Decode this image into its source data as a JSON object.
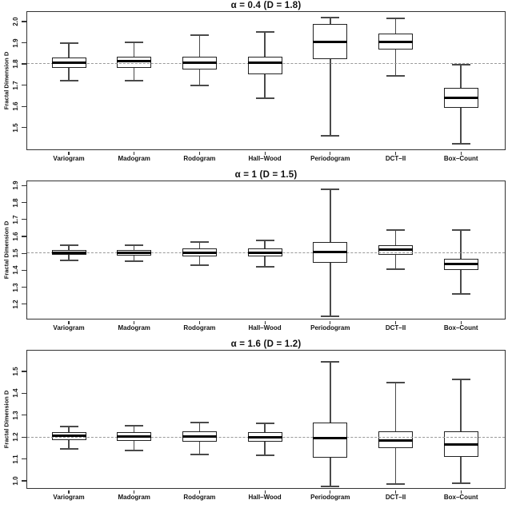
{
  "figure": {
    "ylabel": "Fractal Dimension D",
    "colors": {
      "foreground": "#111111",
      "frame": "#333333",
      "whisker": "#4a4a4a",
      "median": "#000000",
      "reference_dash": "#999999",
      "background": "#ffffff"
    }
  },
  "chart_data": [
    {
      "type": "boxplot",
      "title": "α = 0.4 (D = 1.8)",
      "ylabel": "Fractal Dimension D",
      "reference_line": 1.8,
      "ylim": [
        1.39,
        2.045
      ],
      "yticks": [
        1.5,
        1.6,
        1.7,
        1.8,
        1.9,
        2.0
      ],
      "grid": false,
      "categories": [
        "Variogram",
        "Madogram",
        "Rodogram",
        "Hall–Wood",
        "Periodogram",
        "DCT–II",
        "Box–Count"
      ],
      "boxes": [
        {
          "label": "Variogram",
          "whisker_low": 1.72,
          "q1": 1.78,
          "median": 1.807,
          "q3": 1.83,
          "whisker_high": 1.9
        },
        {
          "label": "Madogram",
          "whisker_low": 1.72,
          "q1": 1.783,
          "median": 1.812,
          "q3": 1.833,
          "whisker_high": 1.903
        },
        {
          "label": "Rodogram",
          "whisker_low": 1.7,
          "q1": 1.775,
          "median": 1.807,
          "q3": 1.835,
          "whisker_high": 1.937
        },
        {
          "label": "Hall–Wood",
          "whisker_low": 1.64,
          "q1": 1.752,
          "median": 1.805,
          "q3": 1.834,
          "whisker_high": 1.95
        },
        {
          "label": "Periodogram",
          "whisker_low": 1.46,
          "q1": 1.822,
          "median": 1.905,
          "q3": 1.988,
          "whisker_high": 2.02
        },
        {
          "label": "DCT–II",
          "whisker_low": 1.743,
          "q1": 1.868,
          "median": 1.905,
          "q3": 1.945,
          "whisker_high": 2.015
        },
        {
          "label": "Box–Count",
          "whisker_low": 1.425,
          "q1": 1.593,
          "median": 1.64,
          "q3": 1.687,
          "whisker_high": 1.795
        }
      ]
    },
    {
      "type": "boxplot",
      "title": "α = 1 (D = 1.5)",
      "ylabel": "Fractal Dimension D",
      "reference_line": 1.5,
      "ylim": [
        1.105,
        1.925
      ],
      "yticks": [
        1.2,
        1.3,
        1.4,
        1.5,
        1.6,
        1.7,
        1.8,
        1.9
      ],
      "grid": false,
      "categories": [
        "Variogram",
        "Madogram",
        "Rodogram",
        "Hall–Wood",
        "Periodogram",
        "DCT–II",
        "Box–Count"
      ],
      "boxes": [
        {
          "label": "Variogram",
          "whisker_low": 1.458,
          "q1": 1.49,
          "median": 1.505,
          "q3": 1.52,
          "whisker_high": 1.548
        },
        {
          "label": "Madogram",
          "whisker_low": 1.452,
          "q1": 1.488,
          "median": 1.503,
          "q3": 1.52,
          "whisker_high": 1.55
        },
        {
          "label": "Rodogram",
          "whisker_low": 1.432,
          "q1": 1.483,
          "median": 1.505,
          "q3": 1.527,
          "whisker_high": 1.567
        },
        {
          "label": "Hall–Wood",
          "whisker_low": 1.42,
          "q1": 1.483,
          "median": 1.505,
          "q3": 1.53,
          "whisker_high": 1.577
        },
        {
          "label": "Periodogram",
          "whisker_low": 1.13,
          "q1": 1.443,
          "median": 1.51,
          "q3": 1.566,
          "whisker_high": 1.877
        },
        {
          "label": "DCT–II",
          "whisker_low": 1.405,
          "q1": 1.49,
          "median": 1.52,
          "q3": 1.55,
          "whisker_high": 1.637
        },
        {
          "label": "Box–Count",
          "whisker_low": 1.26,
          "q1": 1.4,
          "median": 1.437,
          "q3": 1.467,
          "whisker_high": 1.637
        }
      ]
    },
    {
      "type": "boxplot",
      "title": "α = 1.6 (D = 1.2)",
      "ylabel": "Fractal Dimension D",
      "reference_line": 1.2,
      "ylim": [
        0.96,
        1.595
      ],
      "yticks": [
        1.0,
        1.1,
        1.2,
        1.3,
        1.4,
        1.5
      ],
      "grid": false,
      "categories": [
        "Variogram",
        "Madogram",
        "Rodogram",
        "Hall–Wood",
        "Periodogram",
        "DCT–II",
        "Box–Count"
      ],
      "boxes": [
        {
          "label": "Variogram",
          "whisker_low": 1.147,
          "q1": 1.185,
          "median": 1.205,
          "q3": 1.222,
          "whisker_high": 1.25
        },
        {
          "label": "Madogram",
          "whisker_low": 1.14,
          "q1": 1.183,
          "median": 1.203,
          "q3": 1.222,
          "whisker_high": 1.252
        },
        {
          "label": "Rodogram",
          "whisker_low": 1.122,
          "q1": 1.18,
          "median": 1.203,
          "q3": 1.227,
          "whisker_high": 1.268
        },
        {
          "label": "Hall–Wood",
          "whisker_low": 1.118,
          "q1": 1.178,
          "median": 1.198,
          "q3": 1.223,
          "whisker_high": 1.262
        },
        {
          "label": "Periodogram",
          "whisker_low": 0.975,
          "q1": 1.105,
          "median": 1.195,
          "q3": 1.265,
          "whisker_high": 1.545
        },
        {
          "label": "DCT–II",
          "whisker_low": 0.985,
          "q1": 1.15,
          "median": 1.185,
          "q3": 1.225,
          "whisker_high": 1.45
        },
        {
          "label": "Box–Count",
          "whisker_low": 0.99,
          "q1": 1.11,
          "median": 1.165,
          "q3": 1.225,
          "whisker_high": 1.465
        }
      ]
    }
  ]
}
